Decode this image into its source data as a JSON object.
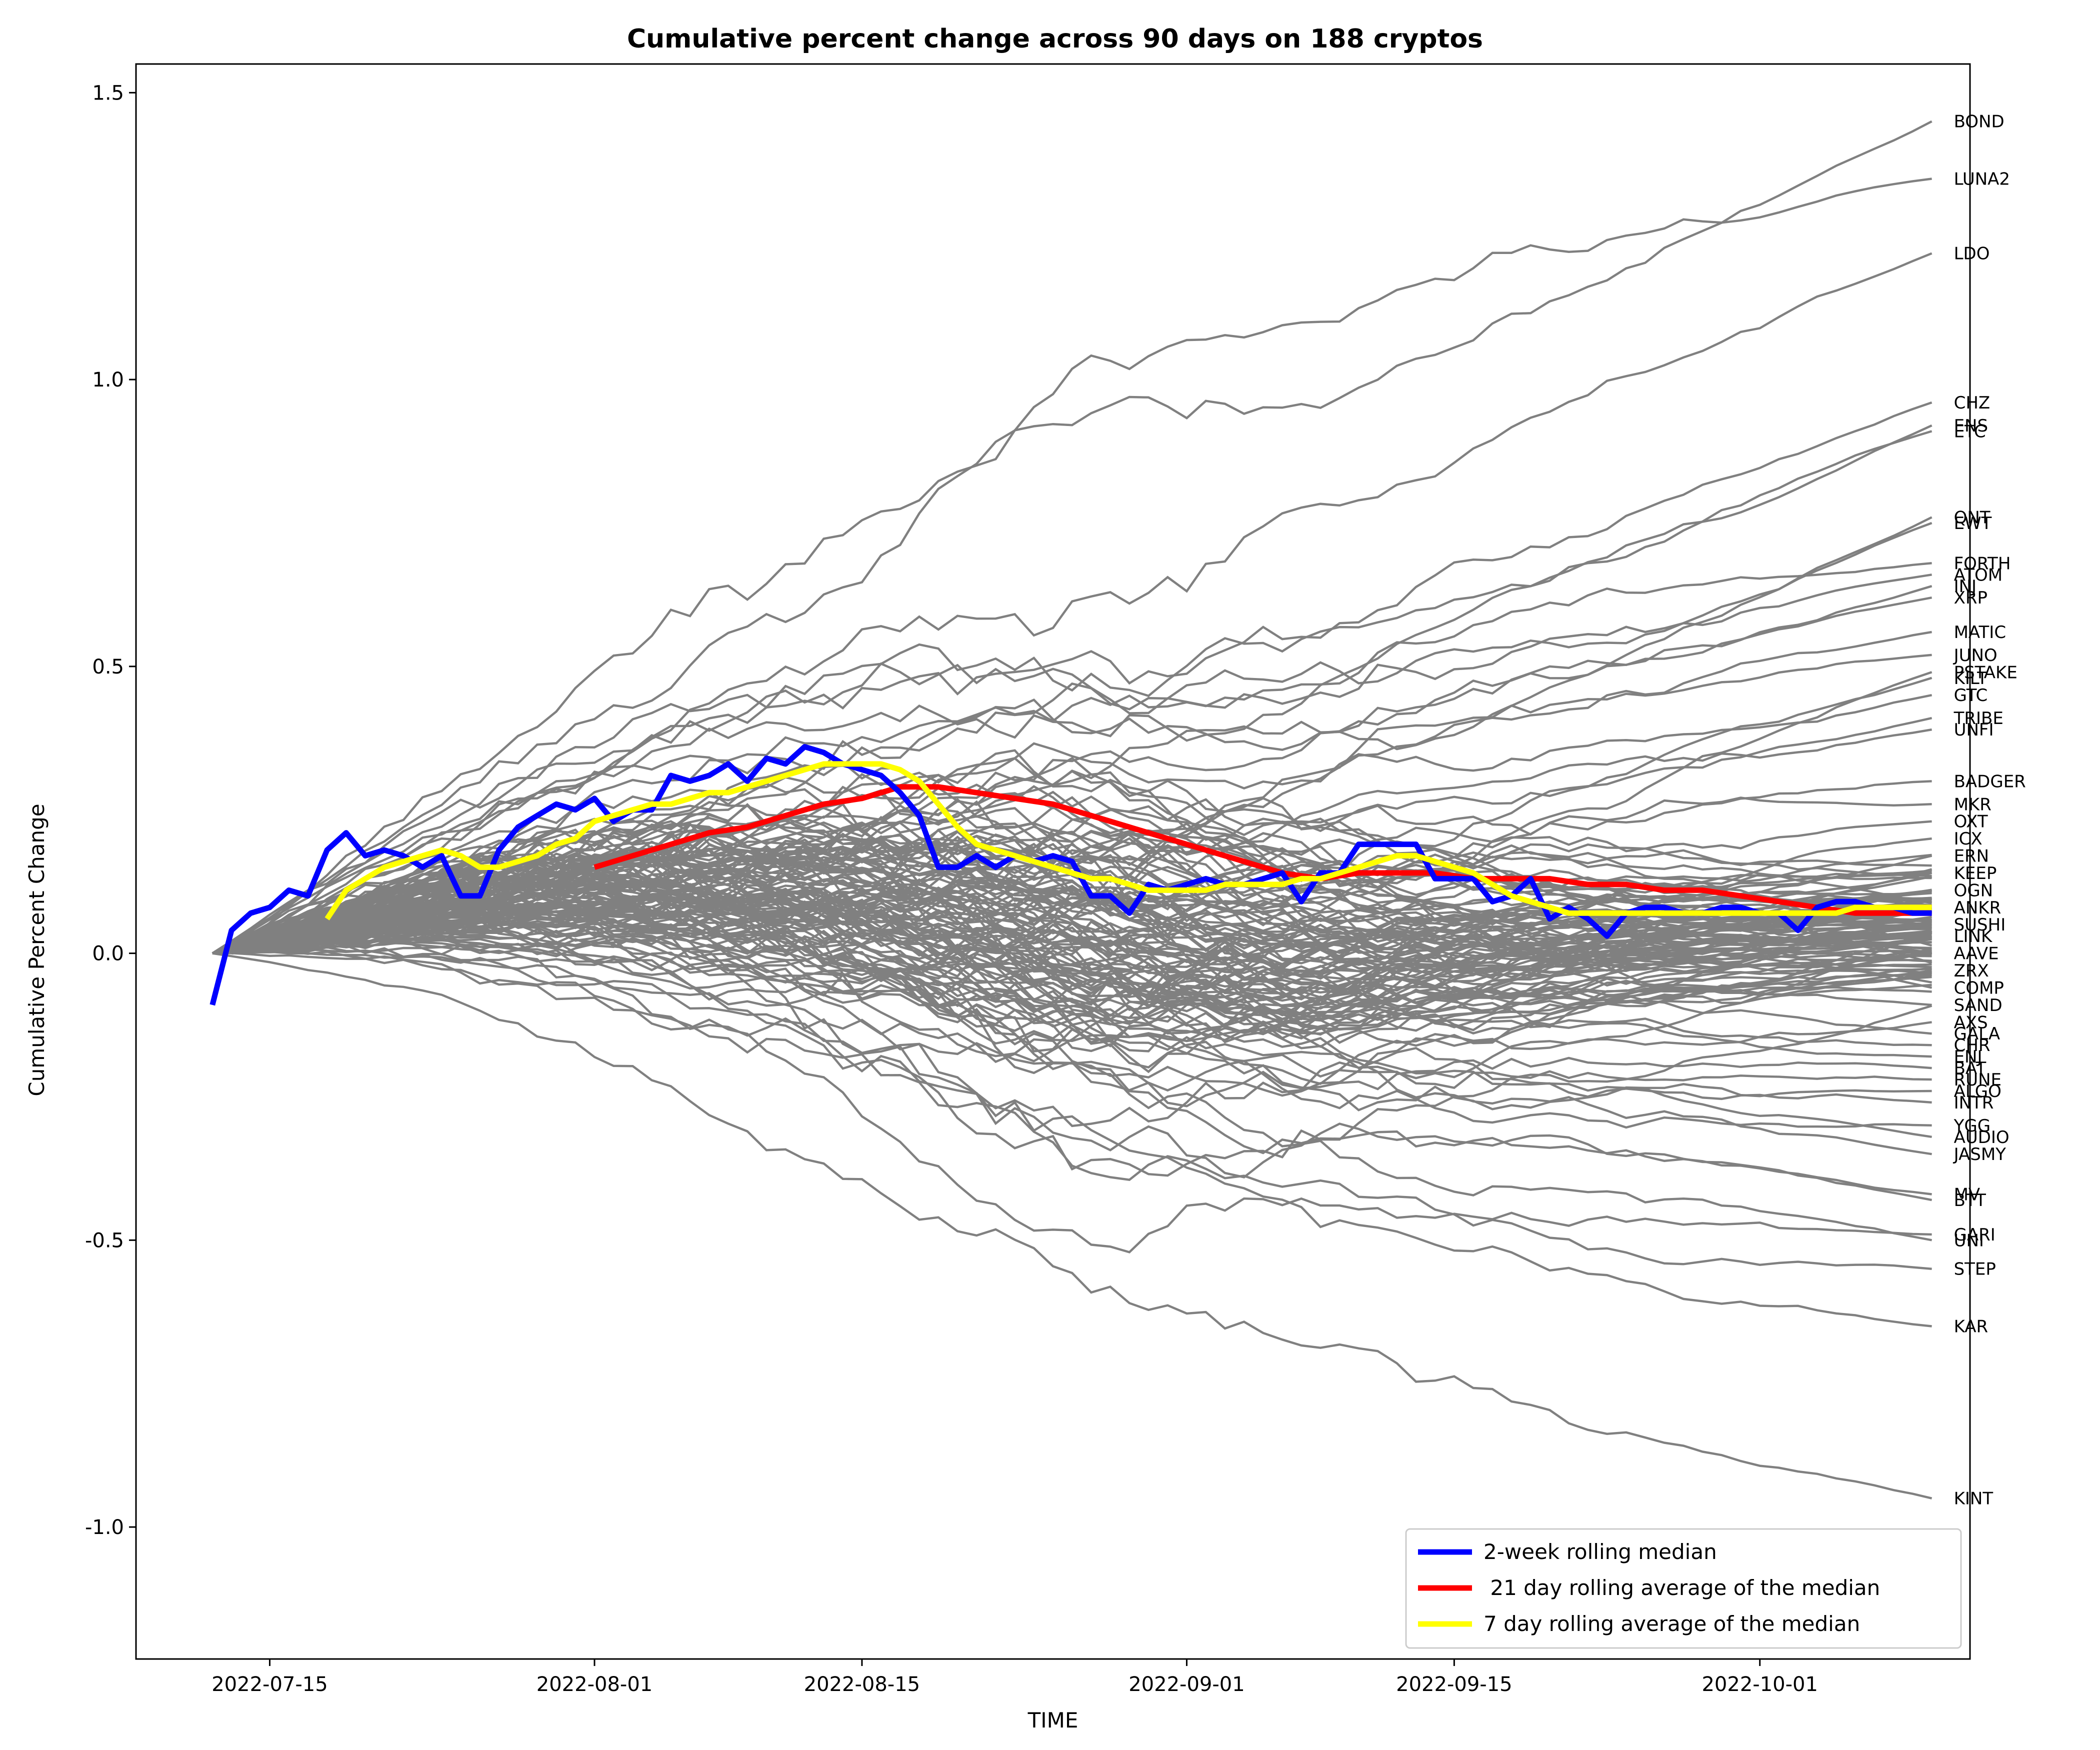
{
  "chart_data": {
    "type": "line",
    "title": "Cumulative percent change across 90 days on 188 cryptos",
    "xlabel": "TIME",
    "ylabel": "Cumulative Percent Change",
    "xlim": [
      "2022-07-08",
      "2022-10-12"
    ],
    "ylim": [
      -1.23,
      1.55
    ],
    "xticks": [
      "2022-07-15",
      "2022-08-01",
      "2022-08-15",
      "2022-09-01",
      "2022-09-15",
      "2022-10-01"
    ],
    "yticks": [
      "-1.0",
      "-0.5",
      "0.0",
      "0.5",
      "1.0",
      "1.5"
    ],
    "grid": false,
    "legend_position": "lower-right",
    "background_series_color": "#808080",
    "end_labels": [
      {
        "label": "BOND",
        "y": 1.45
      },
      {
        "label": "LUNA2",
        "y": 1.35
      },
      {
        "label": "LDO",
        "y": 1.22
      },
      {
        "label": "CHZ",
        "y": 0.96
      },
      {
        "label": "ENS",
        "y": 0.92
      },
      {
        "label": "ETC",
        "y": 0.91
      },
      {
        "label": "QNT",
        "y": 0.76
      },
      {
        "label": "EWT",
        "y": 0.75
      },
      {
        "label": "FORTH",
        "y": 0.68
      },
      {
        "label": "ATOM",
        "y": 0.66
      },
      {
        "label": "INJ",
        "y": 0.64
      },
      {
        "label": "XRP",
        "y": 0.62
      },
      {
        "label": "MATIC",
        "y": 0.56
      },
      {
        "label": "JUNO",
        "y": 0.52
      },
      {
        "label": "PSTAKE",
        "y": 0.49
      },
      {
        "label": "KILT",
        "y": 0.48
      },
      {
        "label": "GTC",
        "y": 0.45
      },
      {
        "label": "TRIBE",
        "y": 0.41
      },
      {
        "label": "UNFI",
        "y": 0.39
      },
      {
        "label": "BADGER",
        "y": 0.3
      },
      {
        "label": "MKR",
        "y": 0.26
      },
      {
        "label": "OXT",
        "y": 0.23
      },
      {
        "label": "ICX",
        "y": 0.2
      },
      {
        "label": "ERN",
        "y": 0.17
      },
      {
        "label": "KEEP",
        "y": 0.14
      },
      {
        "label": "OGN",
        "y": 0.11
      },
      {
        "label": "ANKR",
        "y": 0.08
      },
      {
        "label": "SUSHI",
        "y": 0.05
      },
      {
        "label": "LINK",
        "y": 0.03
      },
      {
        "label": "AAVE",
        "y": 0.0
      },
      {
        "label": "ZRX",
        "y": -0.03
      },
      {
        "label": "COMP",
        "y": -0.06
      },
      {
        "label": "SAND",
        "y": -0.09
      },
      {
        "label": "AXS",
        "y": -0.12
      },
      {
        "label": "GALA",
        "y": -0.14
      },
      {
        "label": "CHR",
        "y": -0.16
      },
      {
        "label": "ENJ",
        "y": -0.18
      },
      {
        "label": "BAT",
        "y": -0.2
      },
      {
        "label": "RUNE",
        "y": -0.22
      },
      {
        "label": "ALGO",
        "y": -0.24
      },
      {
        "label": "INTR",
        "y": -0.26
      },
      {
        "label": "YGG",
        "y": -0.3
      },
      {
        "label": "AUDIO",
        "y": -0.32
      },
      {
        "label": "JASMY",
        "y": -0.35
      },
      {
        "label": "MV",
        "y": -0.42
      },
      {
        "label": "BTT",
        "y": -0.43
      },
      {
        "label": "GARI",
        "y": -0.49
      },
      {
        "label": "UNI",
        "y": -0.5
      },
      {
        "label": "STEP",
        "y": -0.55
      },
      {
        "label": "KAR",
        "y": -0.65
      },
      {
        "label": "KINT",
        "y": -0.95
      }
    ],
    "series": [
      {
        "name": "2-week rolling median",
        "color": "#0000ff",
        "x": [
          "2022-07-12",
          "2022-07-13",
          "2022-07-14",
          "2022-07-15",
          "2022-07-16",
          "2022-07-17",
          "2022-07-18",
          "2022-07-19",
          "2022-07-20",
          "2022-07-21",
          "2022-07-22",
          "2022-07-23",
          "2022-07-24",
          "2022-07-25",
          "2022-07-26",
          "2022-07-27",
          "2022-07-28",
          "2022-07-29",
          "2022-07-30",
          "2022-07-31",
          "2022-08-01",
          "2022-08-02",
          "2022-08-03",
          "2022-08-04",
          "2022-08-05",
          "2022-08-06",
          "2022-08-07",
          "2022-08-08",
          "2022-08-09",
          "2022-08-10",
          "2022-08-11",
          "2022-08-12",
          "2022-08-13",
          "2022-08-14",
          "2022-08-15",
          "2022-08-16",
          "2022-08-17",
          "2022-08-18",
          "2022-08-19",
          "2022-08-20",
          "2022-08-21",
          "2022-08-22",
          "2022-08-23",
          "2022-08-24",
          "2022-08-25",
          "2022-08-26",
          "2022-08-27",
          "2022-08-28",
          "2022-08-29",
          "2022-08-30",
          "2022-08-31",
          "2022-09-01",
          "2022-09-02",
          "2022-09-03",
          "2022-09-04",
          "2022-09-05",
          "2022-09-06",
          "2022-09-07",
          "2022-09-08",
          "2022-09-09",
          "2022-09-10",
          "2022-09-11",
          "2022-09-12",
          "2022-09-13",
          "2022-09-14",
          "2022-09-15",
          "2022-09-16",
          "2022-09-17",
          "2022-09-18",
          "2022-09-19",
          "2022-09-20",
          "2022-09-21",
          "2022-09-22",
          "2022-09-23",
          "2022-09-24",
          "2022-09-25",
          "2022-09-26",
          "2022-09-27",
          "2022-09-28",
          "2022-09-29",
          "2022-09-30",
          "2022-10-01",
          "2022-10-02",
          "2022-10-03",
          "2022-10-04",
          "2022-10-05",
          "2022-10-06",
          "2022-10-07",
          "2022-10-08",
          "2022-10-09",
          "2022-10-10"
        ],
        "values": [
          -0.09,
          0.04,
          0.07,
          0.08,
          0.11,
          0.1,
          0.18,
          0.21,
          0.17,
          0.18,
          0.17,
          0.15,
          0.17,
          0.1,
          0.1,
          0.18,
          0.22,
          0.24,
          0.26,
          0.25,
          0.27,
          0.23,
          0.25,
          0.25,
          0.31,
          0.3,
          0.31,
          0.33,
          0.3,
          0.34,
          0.33,
          0.36,
          0.35,
          0.33,
          0.32,
          0.31,
          0.28,
          0.24,
          0.15,
          0.15,
          0.17,
          0.15,
          0.17,
          0.16,
          0.17,
          0.16,
          0.1,
          0.1,
          0.07,
          0.12,
          0.11,
          0.12,
          0.13,
          0.12,
          0.12,
          0.13,
          0.14,
          0.09,
          0.14,
          0.14,
          0.19,
          0.19,
          0.19,
          0.19,
          0.13,
          0.13,
          0.13,
          0.09,
          0.1,
          0.13,
          0.06,
          0.08,
          0.06,
          0.03,
          0.07,
          0.08,
          0.08,
          0.07,
          0.07,
          0.08,
          0.08,
          0.07,
          0.07,
          0.04,
          0.08,
          0.09,
          0.09,
          0.08,
          0.08,
          0.07,
          0.07
        ]
      },
      {
        "name": " 21 day rolling average of the median",
        "color": "#ff0000",
        "x": [
          "2022-08-01",
          "2022-08-03",
          "2022-08-05",
          "2022-08-07",
          "2022-08-09",
          "2022-08-11",
          "2022-08-13",
          "2022-08-15",
          "2022-08-17",
          "2022-08-19",
          "2022-08-21",
          "2022-08-23",
          "2022-08-25",
          "2022-08-27",
          "2022-08-29",
          "2022-08-31",
          "2022-09-02",
          "2022-09-04",
          "2022-09-06",
          "2022-09-08",
          "2022-09-10",
          "2022-09-12",
          "2022-09-14",
          "2022-09-16",
          "2022-09-18",
          "2022-09-20",
          "2022-09-22",
          "2022-09-24",
          "2022-09-26",
          "2022-09-28",
          "2022-09-30",
          "2022-10-02",
          "2022-10-04",
          "2022-10-06",
          "2022-10-08",
          "2022-10-10"
        ],
        "values": [
          0.15,
          0.17,
          0.19,
          0.21,
          0.22,
          0.24,
          0.26,
          0.27,
          0.29,
          0.29,
          0.28,
          0.27,
          0.26,
          0.24,
          0.22,
          0.2,
          0.18,
          0.16,
          0.14,
          0.13,
          0.14,
          0.14,
          0.14,
          0.13,
          0.13,
          0.13,
          0.12,
          0.12,
          0.11,
          0.11,
          0.1,
          0.09,
          0.08,
          0.07,
          0.07,
          0.07
        ]
      },
      {
        "name": "7 day rolling average of the median",
        "color": "#ffff00",
        "x": [
          "2022-07-18",
          "2022-07-19",
          "2022-07-20",
          "2022-07-21",
          "2022-07-22",
          "2022-07-23",
          "2022-07-24",
          "2022-07-25",
          "2022-07-26",
          "2022-07-27",
          "2022-07-28",
          "2022-07-29",
          "2022-07-30",
          "2022-07-31",
          "2022-08-01",
          "2022-08-02",
          "2022-08-03",
          "2022-08-04",
          "2022-08-05",
          "2022-08-06",
          "2022-08-07",
          "2022-08-08",
          "2022-08-09",
          "2022-08-10",
          "2022-08-11",
          "2022-08-12",
          "2022-08-13",
          "2022-08-14",
          "2022-08-15",
          "2022-08-16",
          "2022-08-17",
          "2022-08-18",
          "2022-08-19",
          "2022-08-20",
          "2022-08-21",
          "2022-08-22",
          "2022-08-23",
          "2022-08-24",
          "2022-08-25",
          "2022-08-26",
          "2022-08-27",
          "2022-08-28",
          "2022-08-29",
          "2022-08-30",
          "2022-08-31",
          "2022-09-01",
          "2022-09-02",
          "2022-09-03",
          "2022-09-04",
          "2022-09-05",
          "2022-09-06",
          "2022-09-07",
          "2022-09-08",
          "2022-09-09",
          "2022-09-10",
          "2022-09-11",
          "2022-09-12",
          "2022-09-13",
          "2022-09-14",
          "2022-09-15",
          "2022-09-16",
          "2022-09-17",
          "2022-09-18",
          "2022-09-19",
          "2022-09-20",
          "2022-09-21",
          "2022-09-22",
          "2022-09-23",
          "2022-09-24",
          "2022-09-25",
          "2022-09-26",
          "2022-09-27",
          "2022-09-28",
          "2022-09-29",
          "2022-09-30",
          "2022-10-01",
          "2022-10-02",
          "2022-10-03",
          "2022-10-04",
          "2022-10-05",
          "2022-10-06",
          "2022-10-07",
          "2022-10-08",
          "2022-10-09",
          "2022-10-10"
        ],
        "values": [
          0.06,
          0.11,
          0.13,
          0.15,
          0.16,
          0.17,
          0.18,
          0.17,
          0.15,
          0.15,
          0.16,
          0.17,
          0.19,
          0.2,
          0.23,
          0.24,
          0.25,
          0.26,
          0.26,
          0.27,
          0.28,
          0.28,
          0.29,
          0.3,
          0.31,
          0.32,
          0.33,
          0.33,
          0.33,
          0.33,
          0.32,
          0.3,
          0.26,
          0.22,
          0.19,
          0.18,
          0.17,
          0.16,
          0.15,
          0.14,
          0.13,
          0.13,
          0.12,
          0.11,
          0.11,
          0.11,
          0.11,
          0.12,
          0.12,
          0.12,
          0.12,
          0.13,
          0.13,
          0.14,
          0.15,
          0.16,
          0.17,
          0.17,
          0.16,
          0.15,
          0.14,
          0.12,
          0.1,
          0.09,
          0.08,
          0.07,
          0.07,
          0.07,
          0.07,
          0.07,
          0.07,
          0.07,
          0.07,
          0.07,
          0.07,
          0.07,
          0.07,
          0.07,
          0.07,
          0.07,
          0.08,
          0.08,
          0.08,
          0.08,
          0.08
        ]
      }
    ]
  }
}
